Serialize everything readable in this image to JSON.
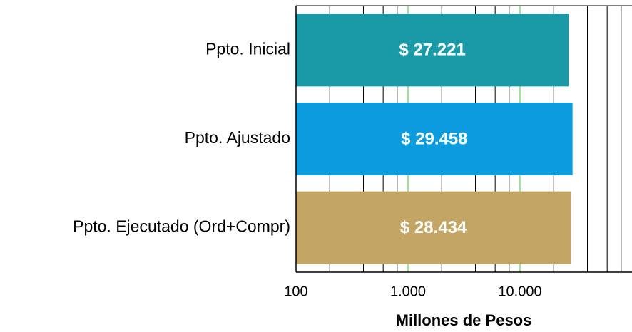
{
  "chart_data": {
    "type": "bar",
    "orientation": "horizontal",
    "categories": [
      "Ppto. Inicial",
      "Ppto. Ajustado",
      "Ppto. Ejecutado (Ord+Compr)"
    ],
    "values": [
      27221,
      29458,
      28434
    ],
    "value_labels": [
      "$ 27.221",
      "$ 29.458",
      "$ 28.434"
    ],
    "colors": [
      "#1a9aa6",
      "#0a9cdc",
      "#c4a664"
    ],
    "xlabel": "Millones de Pesos",
    "xscale": "log",
    "xlim": [
      100,
      100000
    ],
    "xticks": [
      100,
      {
        "value": 1000,
        "label": "1.000"
      },
      {
        "value": 10000,
        "label": "10.000"
      }
    ],
    "minor_xticks": [
      200,
      400,
      600,
      800,
      2000,
      4000,
      6000,
      8000,
      20000,
      40000,
      60000,
      80000
    ],
    "grid": true,
    "major_grid_color": "#33cc33",
    "minor_grid_color": "#000000"
  }
}
